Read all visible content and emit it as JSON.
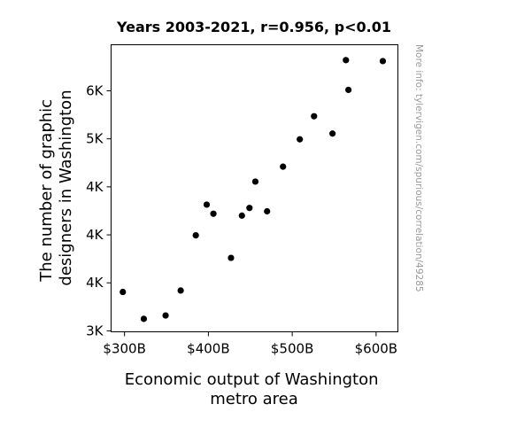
{
  "chart_data": {
    "type": "scatter",
    "title": "Years 2003-2021, r=0.956, p<0.01",
    "xlabel": [
      "Economic output of Washington",
      "metro area"
    ],
    "ylabel": [
      "The number of graphic",
      "designers in Washington"
    ],
    "side_note": "More info: tylervigen.com/spurious/correlation/49285",
    "xlim": [
      284,
      626
    ],
    "ylim": [
      2990,
      5980
    ],
    "x_ticks": [
      {
        "value": 300,
        "label": "$300B"
      },
      {
        "value": 400,
        "label": "$400B"
      },
      {
        "value": 500,
        "label": "$500B"
      },
      {
        "value": 600,
        "label": "$600B"
      }
    ],
    "y_ticks": [
      {
        "value": 3000,
        "label": "3K"
      },
      {
        "value": 3500,
        "label": "4K"
      },
      {
        "value": 4000,
        "label": "4K"
      },
      {
        "value": 4500,
        "label": "4K"
      },
      {
        "value": 5000,
        "label": "5K"
      },
      {
        "value": 5500,
        "label": "6K"
      }
    ],
    "grid": false,
    "marker_color": "#000000",
    "points": [
      {
        "x": 298,
        "y": 3405
      },
      {
        "x": 323,
        "y": 3125
      },
      {
        "x": 349,
        "y": 3160
      },
      {
        "x": 367,
        "y": 3420
      },
      {
        "x": 385,
        "y": 3995
      },
      {
        "x": 398,
        "y": 4315
      },
      {
        "x": 406,
        "y": 4220
      },
      {
        "x": 427,
        "y": 3760
      },
      {
        "x": 440,
        "y": 4200
      },
      {
        "x": 449,
        "y": 4280
      },
      {
        "x": 456,
        "y": 4555
      },
      {
        "x": 470,
        "y": 4245
      },
      {
        "x": 489,
        "y": 4710
      },
      {
        "x": 509,
        "y": 4995
      },
      {
        "x": 526,
        "y": 5235
      },
      {
        "x": 548,
        "y": 5055
      },
      {
        "x": 564,
        "y": 5820
      },
      {
        "x": 567,
        "y": 5510
      },
      {
        "x": 608,
        "y": 5810
      }
    ]
  }
}
